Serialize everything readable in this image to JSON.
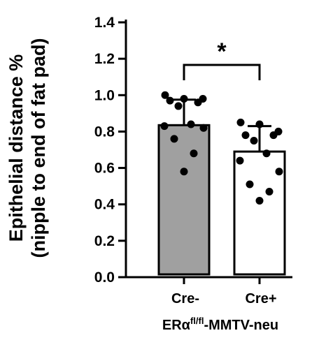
{
  "chart_data": {
    "type": "bar",
    "ylabel_line1": "Epithelial distance %",
    "ylabel_line2": "(nipple to end of fat pad)",
    "xlabel_main": "ERα",
    "xlabel_sup": "fl/fl",
    "xlabel_rest": "-MMTV-neu",
    "ylim": [
      0,
      1.4
    ],
    "yticks": [
      "0.0",
      "0.2",
      "0.4",
      "0.6",
      "0.8",
      "1.0",
      "1.2",
      "1.4"
    ],
    "categories": [
      "Cre-",
      "Cre+"
    ],
    "bar_colors": [
      "#a0a0a0",
      "#ffffff"
    ],
    "means": [
      0.835,
      0.69
    ],
    "error_upper": [
      0.975,
      0.83
    ],
    "points": [
      [
        1.0,
        0.98,
        0.98,
        0.97,
        0.96,
        0.94,
        0.84,
        0.83,
        0.82,
        0.76,
        0.68,
        0.58
      ],
      [
        0.85,
        0.84,
        0.8,
        0.78,
        0.78,
        0.75,
        0.68,
        0.64,
        0.58,
        0.51,
        0.47,
        0.42
      ]
    ],
    "significance": "*",
    "grid": false
  }
}
